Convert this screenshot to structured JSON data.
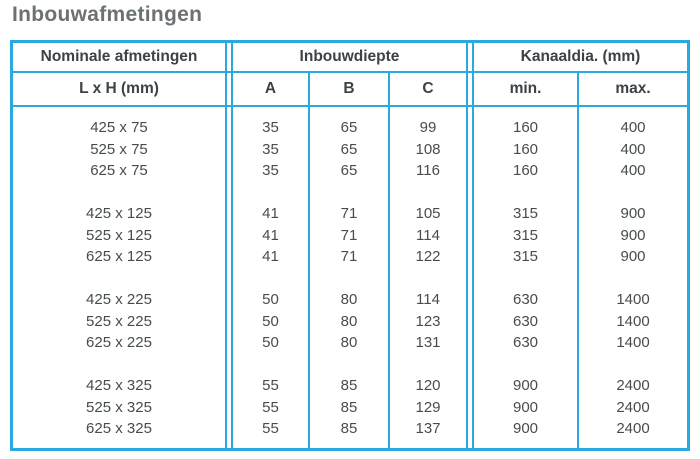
{
  "title": "Inbouwafmetingen",
  "colors": {
    "table_border": "#29a9e0",
    "header_text": "#3c4245",
    "value_text": "#474c4f",
    "title_text": "#6c7174"
  },
  "table": {
    "sections": [
      {
        "label": "Nominale afmetingen"
      },
      {
        "label": "Inbouwdiepte"
      },
      {
        "label": "Kanaaldia. (mm)"
      }
    ],
    "columns": [
      "L x H (mm)",
      "A",
      "B",
      "C",
      "min.",
      "max."
    ],
    "groups": [
      [
        [
          "425 x 75",
          "35",
          "65",
          "99",
          "160",
          "400"
        ],
        [
          "525 x 75",
          "35",
          "65",
          "108",
          "160",
          "400"
        ],
        [
          "625 x 75",
          "35",
          "65",
          "116",
          "160",
          "400"
        ]
      ],
      [
        [
          "425 x 125",
          "41",
          "71",
          "105",
          "315",
          "900"
        ],
        [
          "525 x 125",
          "41",
          "71",
          "114",
          "315",
          "900"
        ],
        [
          "625 x 125",
          "41",
          "71",
          "122",
          "315",
          "900"
        ]
      ],
      [
        [
          "425 x 225",
          "50",
          "80",
          "114",
          "630",
          "1400"
        ],
        [
          "525 x 225",
          "50",
          "80",
          "123",
          "630",
          "1400"
        ],
        [
          "625 x 225",
          "50",
          "80",
          "131",
          "630",
          "1400"
        ]
      ],
      [
        [
          "425 x 325",
          "55",
          "85",
          "120",
          "900",
          "2400"
        ],
        [
          "525 x 325",
          "55",
          "85",
          "129",
          "900",
          "2400"
        ],
        [
          "625 x 325",
          "55",
          "85",
          "137",
          "900",
          "2400"
        ]
      ]
    ]
  }
}
